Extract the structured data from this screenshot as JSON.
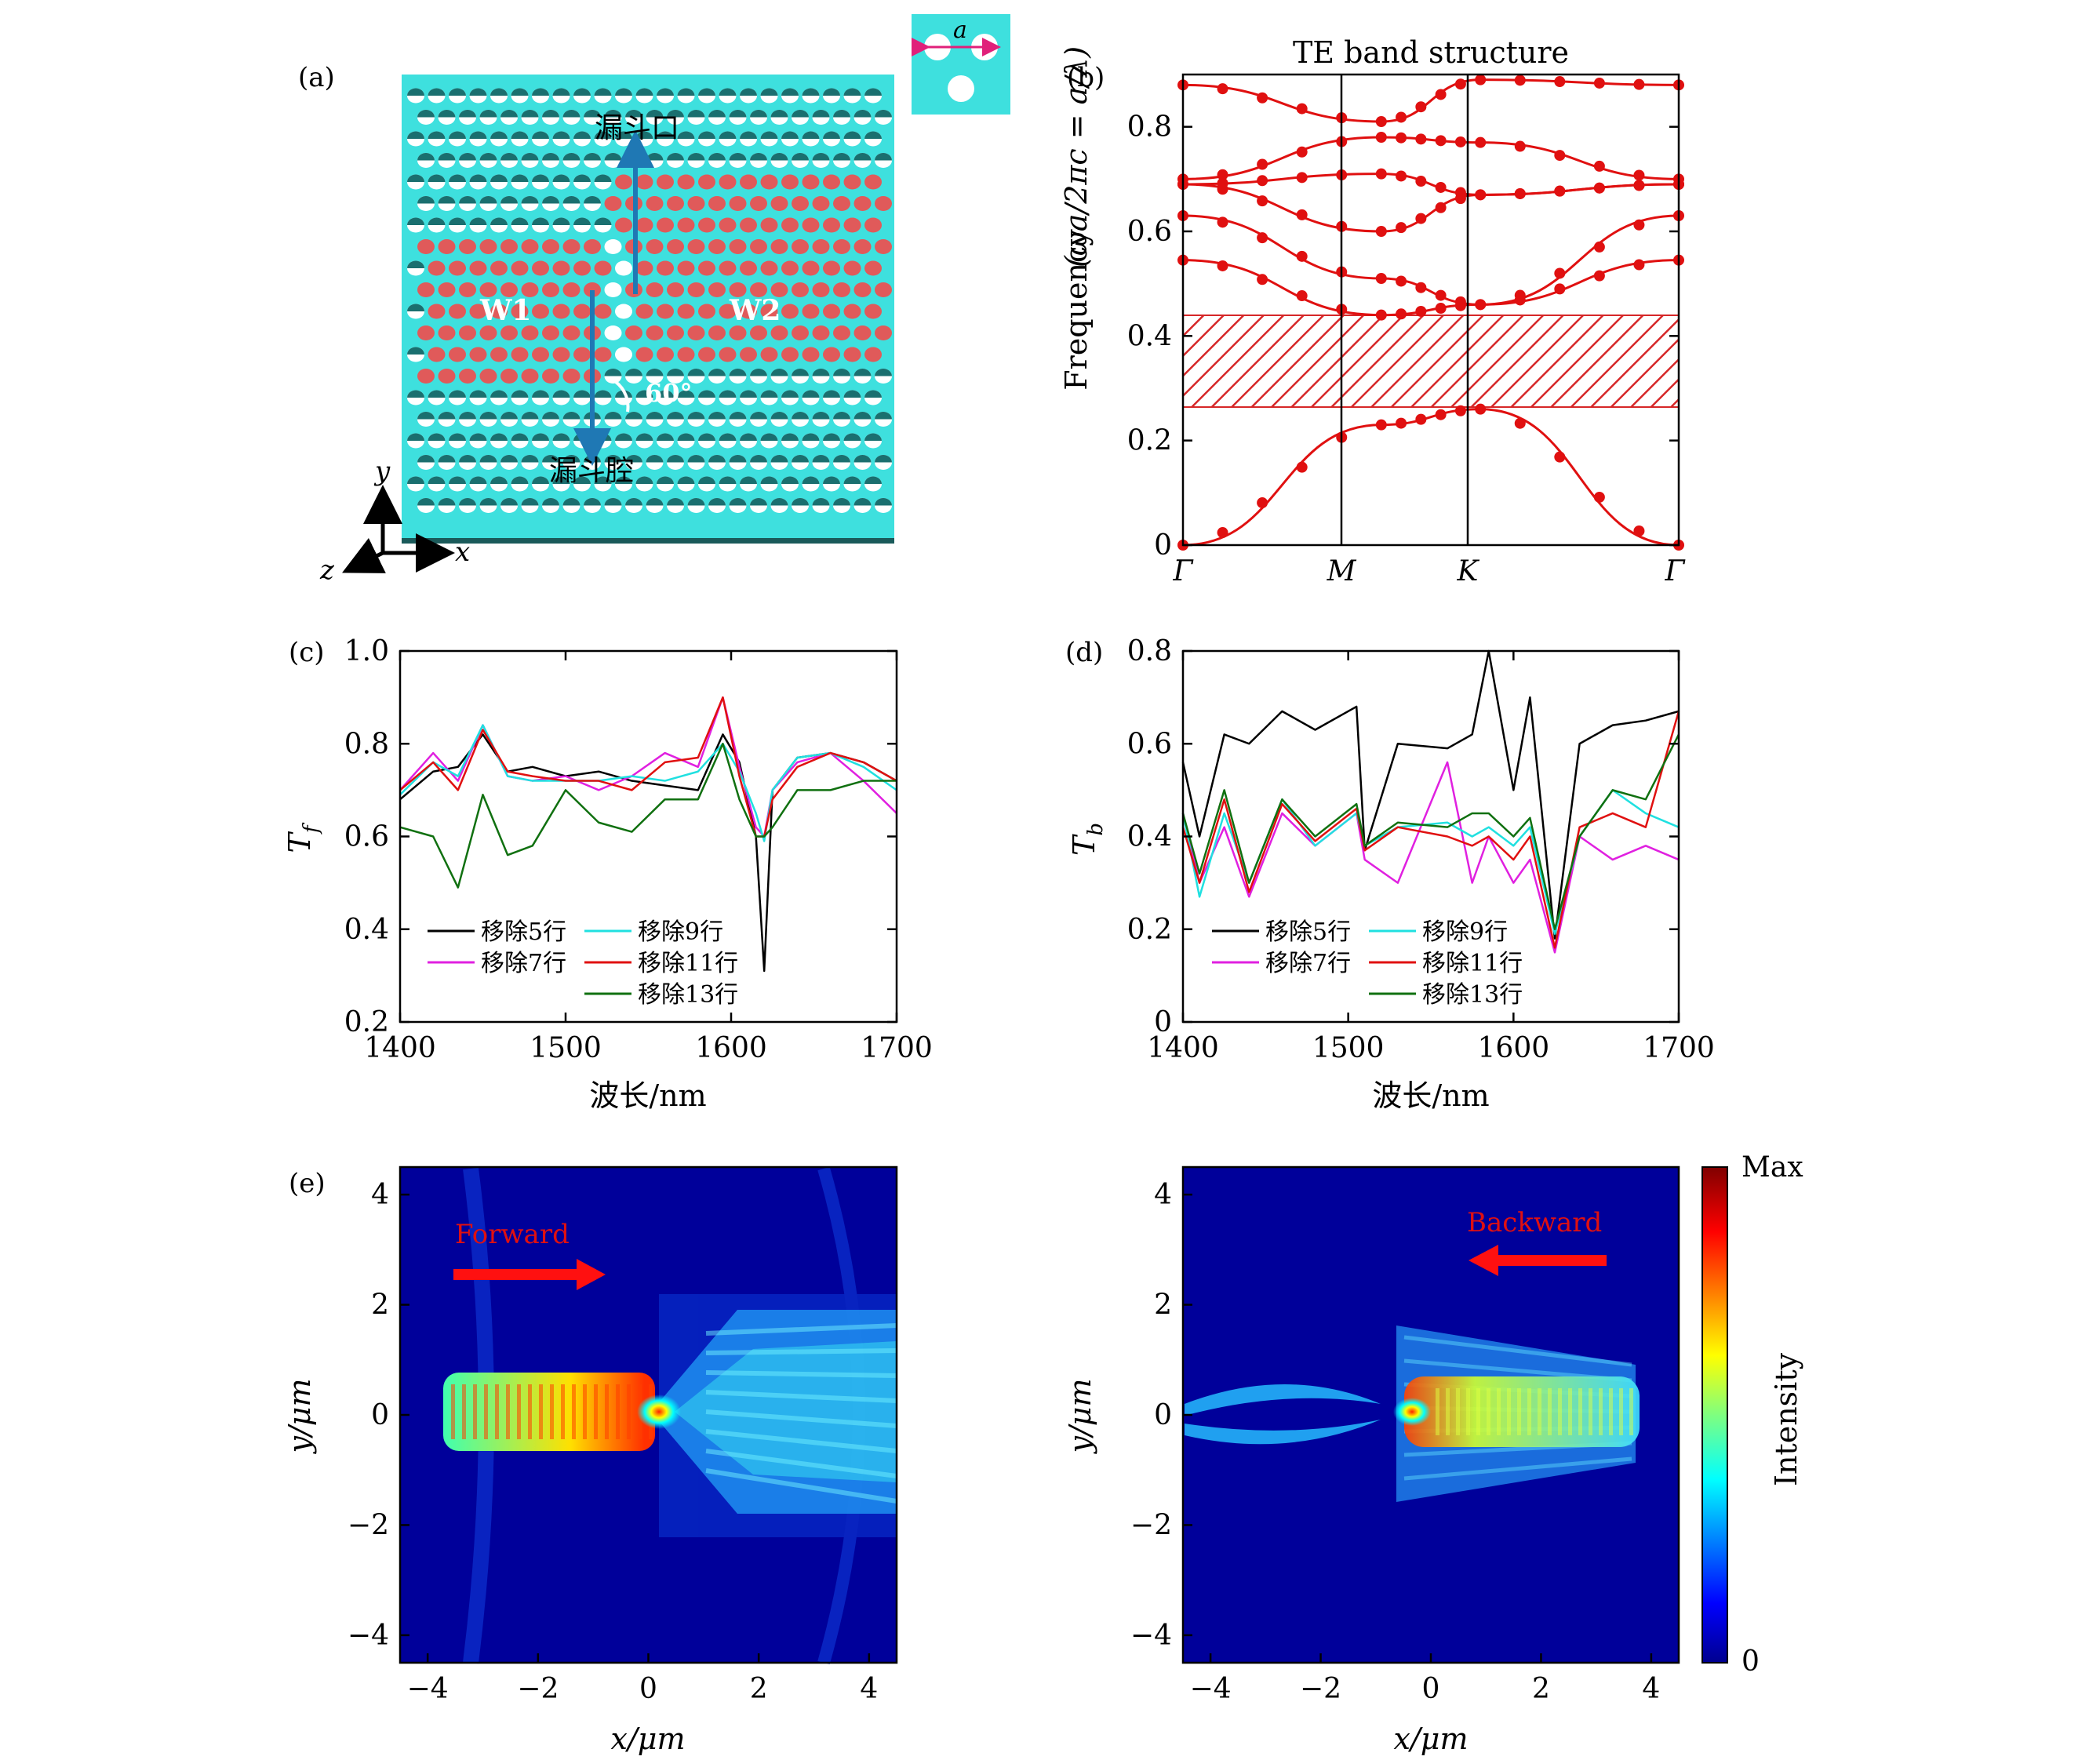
{
  "panel_labels": {
    "a": "(a)",
    "b": "(b)",
    "c": "(c)",
    "d": "(d)",
    "e": "(e)"
  },
  "schematic": {
    "funnel_mouth_label": "漏斗口",
    "funnel_cavity_label": "漏斗腔",
    "w1_label": "W1",
    "w2_label": "W2",
    "angle_label": "60°",
    "lattice_constant_label": "a",
    "axis_x": "x",
    "axis_y": "y",
    "axis_z": "z",
    "colors": {
      "slab": "#3ee0de",
      "hole": "#ffffff",
      "filled_hole": "#e05a5a",
      "arrow": "#1f78b4"
    }
  },
  "band": {
    "title": "TE band structure",
    "ylabel": "Frequency",
    "ylabel_formula": "(ωa/2πc = a/λ)",
    "x_ticks": [
      "Γ",
      "M",
      "K",
      "Γ"
    ],
    "y_ticks": [
      "0",
      "0.2",
      "0.4",
      "0.6",
      "0.8"
    ],
    "gap_color": "#d62728"
  },
  "spectra": {
    "xlabel": "波长/nm",
    "x_ticks": [
      "1400",
      "1500",
      "1600",
      "1700"
    ],
    "c_ylabel": "T",
    "c_ylabel_sub": "f",
    "c_y_ticks": [
      "0.2",
      "0.4",
      "0.6",
      "0.8",
      "1.0"
    ],
    "d_ylabel": "T",
    "d_ylabel_sub": "b",
    "d_y_ticks": [
      "0",
      "0.2",
      "0.4",
      "0.6",
      "0.8"
    ],
    "legend": [
      "移除5行",
      "移除7行",
      "移除9行",
      "移除11行",
      "移除13行"
    ],
    "colors": [
      "#000000",
      "#e020e0",
      "#20e0e0",
      "#e01010",
      "#107010"
    ]
  },
  "field": {
    "xlabel": "x/μm",
    "ylabel": "y/μm",
    "x_ticks": [
      "−4",
      "−2",
      "0",
      "2",
      "4"
    ],
    "y_ticks": [
      "−4",
      "−2",
      "0",
      "2",
      "4"
    ],
    "forward_label": "Forward",
    "backward_label": "Backward",
    "colorbar_max": "Max",
    "colorbar_min": "0",
    "colorbar_label": "Intensity"
  },
  "chart_data": [
    {
      "type": "line",
      "title": "TE band structure",
      "ylabel": "Frequency (ωa/2πc = a/λ)",
      "x_ticks": [
        "Γ",
        "M",
        "K",
        "Γ"
      ],
      "ylim": [
        0,
        0.9
      ],
      "bandgap": [
        0.26,
        0.435
      ],
      "bands": [
        {
          "x": [
            0,
            0.5,
            0.75,
            1.25
          ],
          "values": [
            0,
            0.23,
            0.26,
            0
          ]
        },
        {
          "x": [
            0,
            0.5,
            0.75,
            1.25
          ],
          "values": [
            0.545,
            0.44,
            0.46,
            0.545
          ]
        },
        {
          "x": [
            0,
            0.5,
            0.75,
            1.25
          ],
          "values": [
            0.63,
            0.51,
            0.46,
            0.63
          ]
        },
        {
          "x": [
            0,
            0.5,
            0.75,
            1.25
          ],
          "values": [
            0.69,
            0.6,
            0.67,
            0.69
          ]
        },
        {
          "x": [
            0,
            0.5,
            0.75,
            1.25
          ],
          "values": [
            0.69,
            0.71,
            0.67,
            0.69
          ]
        },
        {
          "x": [
            0,
            0.5,
            0.75,
            1.25
          ],
          "values": [
            0.7,
            0.78,
            0.77,
            0.7
          ]
        },
        {
          "x": [
            0,
            0.5,
            0.75,
            1.25
          ],
          "values": [
            0.88,
            0.81,
            0.89,
            0.88
          ]
        }
      ]
    },
    {
      "type": "line",
      "ylabel": "Tf",
      "xlabel": "波长/nm",
      "xlim": [
        1400,
        1700
      ],
      "ylim": [
        0.2,
        1.0
      ],
      "x": [
        1400,
        1420,
        1435,
        1450,
        1465,
        1480,
        1500,
        1520,
        1540,
        1560,
        1580,
        1595,
        1605,
        1615,
        1620,
        1625,
        1640,
        1660,
        1680,
        1700
      ],
      "series": [
        {
          "name": "移除5行",
          "values": [
            0.68,
            0.74,
            0.75,
            0.82,
            0.74,
            0.75,
            0.73,
            0.74,
            0.72,
            0.71,
            0.7,
            0.82,
            0.76,
            0.6,
            0.31,
            0.7,
            0.77,
            0.78,
            0.76,
            0.72
          ]
        },
        {
          "name": "移除7行",
          "values": [
            0.7,
            0.78,
            0.72,
            0.84,
            0.73,
            0.72,
            0.73,
            0.7,
            0.73,
            0.78,
            0.75,
            0.9,
            0.75,
            0.62,
            0.6,
            0.7,
            0.76,
            0.78,
            0.72,
            0.65
          ]
        },
        {
          "name": "移除9行",
          "values": [
            0.69,
            0.76,
            0.73,
            0.84,
            0.73,
            0.72,
            0.72,
            0.72,
            0.73,
            0.72,
            0.74,
            0.8,
            0.74,
            0.65,
            0.59,
            0.7,
            0.77,
            0.78,
            0.75,
            0.7
          ]
        },
        {
          "name": "移除11行",
          "values": [
            0.7,
            0.76,
            0.7,
            0.83,
            0.74,
            0.73,
            0.72,
            0.72,
            0.7,
            0.76,
            0.77,
            0.9,
            0.73,
            0.6,
            0.6,
            0.68,
            0.75,
            0.78,
            0.76,
            0.72
          ]
        },
        {
          "name": "移除13行",
          "values": [
            0.62,
            0.6,
            0.49,
            0.69,
            0.56,
            0.58,
            0.7,
            0.63,
            0.61,
            0.68,
            0.68,
            0.8,
            0.68,
            0.6,
            0.6,
            0.62,
            0.7,
            0.7,
            0.72,
            0.72
          ]
        }
      ]
    },
    {
      "type": "line",
      "ylabel": "Tb",
      "xlabel": "波长/nm",
      "xlim": [
        1400,
        1700
      ],
      "ylim": [
        0,
        0.8
      ],
      "x": [
        1400,
        1410,
        1425,
        1440,
        1460,
        1480,
        1505,
        1510,
        1530,
        1560,
        1575,
        1585,
        1600,
        1610,
        1625,
        1640,
        1660,
        1680,
        1700
      ],
      "series": [
        {
          "name": "移除5行",
          "values": [
            0.56,
            0.4,
            0.62,
            0.6,
            0.67,
            0.63,
            0.68,
            0.37,
            0.6,
            0.59,
            0.62,
            0.8,
            0.5,
            0.7,
            0.18,
            0.6,
            0.64,
            0.65,
            0.67
          ]
        },
        {
          "name": "移除7行",
          "values": [
            0.45,
            0.3,
            0.42,
            0.27,
            0.45,
            0.38,
            0.45,
            0.35,
            0.3,
            0.56,
            0.3,
            0.4,
            0.3,
            0.35,
            0.15,
            0.4,
            0.35,
            0.38,
            0.35
          ]
        },
        {
          "name": "移除9行",
          "values": [
            0.45,
            0.27,
            0.45,
            0.3,
            0.48,
            0.38,
            0.45,
            0.38,
            0.42,
            0.43,
            0.4,
            0.42,
            0.38,
            0.42,
            0.19,
            0.4,
            0.5,
            0.45,
            0.42
          ]
        },
        {
          "name": "移除11行",
          "values": [
            0.42,
            0.3,
            0.48,
            0.28,
            0.47,
            0.39,
            0.46,
            0.37,
            0.42,
            0.4,
            0.38,
            0.4,
            0.35,
            0.4,
            0.16,
            0.42,
            0.45,
            0.42,
            0.67
          ]
        },
        {
          "name": "移除13行",
          "values": [
            0.45,
            0.32,
            0.5,
            0.3,
            0.48,
            0.4,
            0.47,
            0.38,
            0.43,
            0.42,
            0.45,
            0.45,
            0.4,
            0.44,
            0.2,
            0.4,
            0.5,
            0.48,
            0.62
          ]
        }
      ]
    },
    {
      "type": "heatmap",
      "title": "Forward",
      "xlabel": "x/μm",
      "ylabel": "y/μm",
      "xlim": [
        -4.5,
        4.5
      ],
      "ylim": [
        -4.5,
        4.5
      ]
    },
    {
      "type": "heatmap",
      "title": "Backward",
      "xlabel": "x/μm",
      "ylabel": "y/μm",
      "xlim": [
        -4.5,
        4.5
      ],
      "ylim": [
        -4.5,
        4.5
      ]
    }
  ]
}
